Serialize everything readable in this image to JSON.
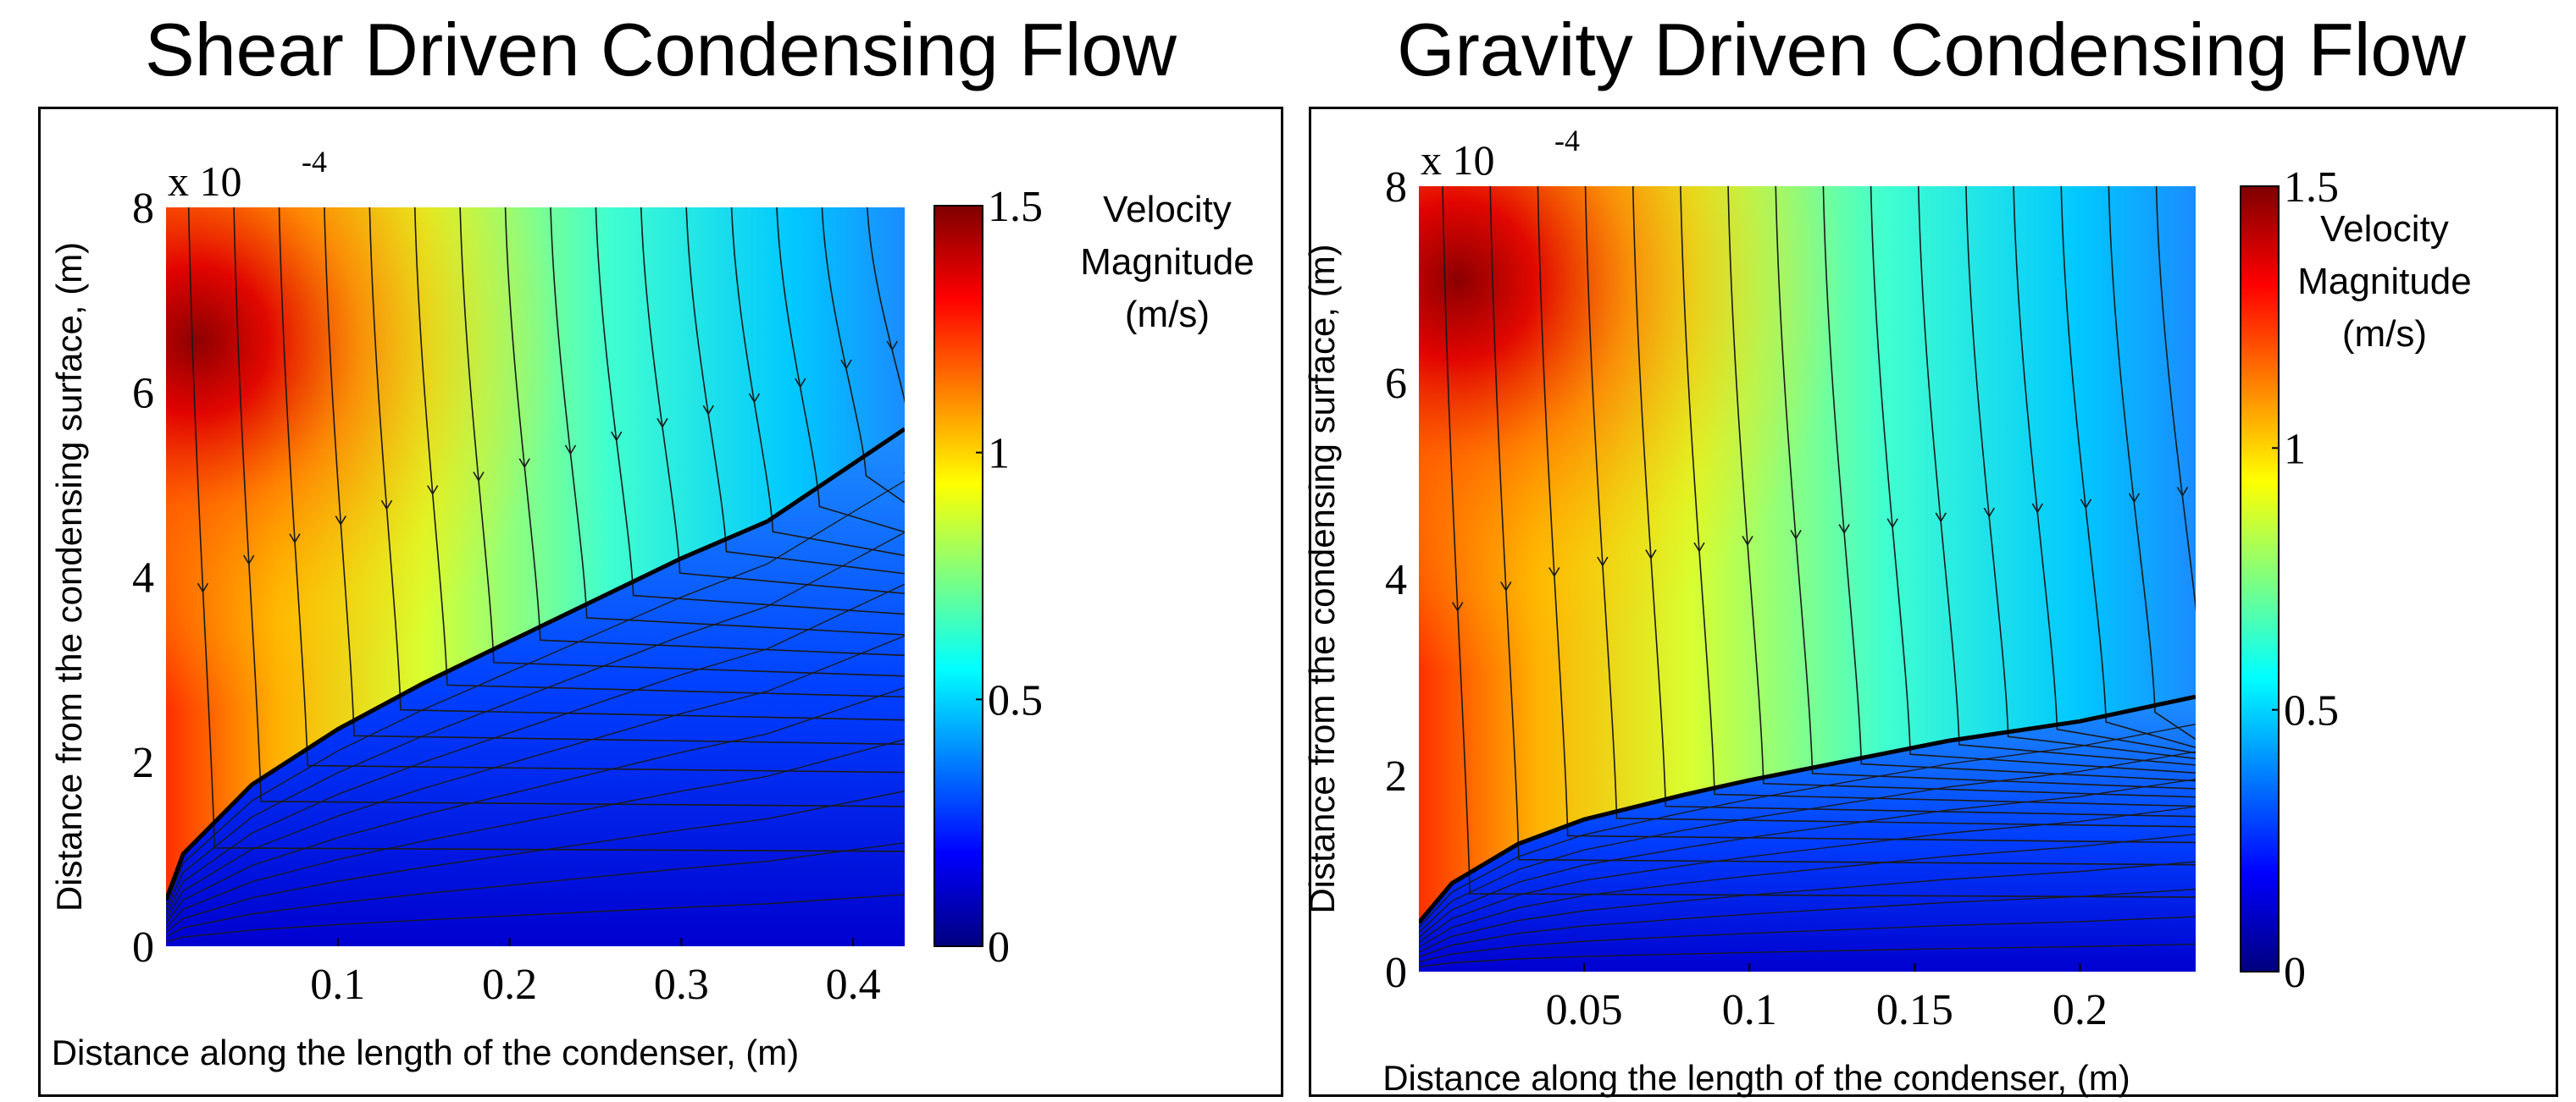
{
  "chart_data": [
    {
      "type": "heatmap",
      "title": "Shear Driven Condensing Flow",
      "xlabel": "Distance along the length of the condenser, (m)",
      "ylabel": "Distance from the condensing surface, (m)",
      "y_multiplier": "x 10",
      "y_multiplier_exp": "-4",
      "xlim": [
        0.0,
        0.43
      ],
      "ylim": [
        0,
        8
      ],
      "xticks": [
        "0.1",
        "0.2",
        "0.3",
        "0.4"
      ],
      "yticks": [
        "0",
        "2",
        "4",
        "6",
        "8"
      ],
      "colorbar": {
        "label": [
          "Velocity",
          "Magnitude",
          "(m/s)"
        ],
        "ticks": [
          "0",
          "0.5",
          "1",
          "1.5"
        ],
        "range": [
          0,
          1.5
        ]
      },
      "interface_curve": {
        "x": [
          0.0,
          0.01,
          0.05,
          0.1,
          0.15,
          0.2,
          0.25,
          0.3,
          0.35,
          0.43
        ],
        "y": [
          0.5,
          1.0,
          1.75,
          2.35,
          2.85,
          3.3,
          3.75,
          4.2,
          4.6,
          5.6
        ]
      },
      "colormap": "jet",
      "grid": false
    },
    {
      "type": "heatmap",
      "title": "Gravity Driven Condensing Flow",
      "xlabel": "Distance along the length of the condenser, (m)",
      "ylabel": "Distance from the condensing surface, (m)",
      "y_multiplier": "x 10",
      "y_multiplier_exp": "-4",
      "xlim": [
        0.0,
        0.235
      ],
      "ylim": [
        0,
        8
      ],
      "xticks": [
        "0.05",
        "0.1",
        "0.15",
        "0.2"
      ],
      "yticks": [
        "0",
        "2",
        "4",
        "6",
        "8"
      ],
      "colorbar": {
        "label": [
          "Velocity",
          "Magnitude",
          "(m/s)"
        ],
        "ticks": [
          "0",
          "0.5",
          "1",
          "1.5"
        ],
        "range": [
          0,
          1.5
        ]
      },
      "interface_curve": {
        "x": [
          0.0,
          0.01,
          0.03,
          0.05,
          0.08,
          0.1,
          0.13,
          0.16,
          0.2,
          0.235
        ],
        "y": [
          0.5,
          0.9,
          1.3,
          1.55,
          1.8,
          1.95,
          2.15,
          2.35,
          2.55,
          2.8
        ]
      },
      "colormap": "jet",
      "grid": false
    }
  ]
}
